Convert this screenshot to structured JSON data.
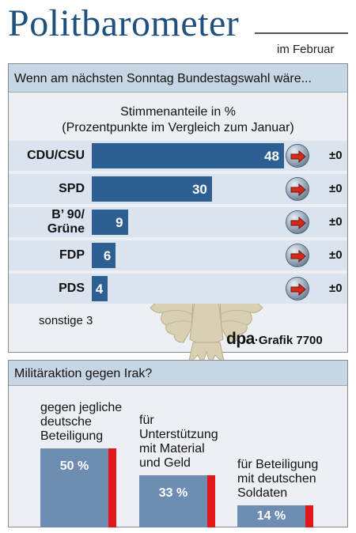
{
  "header": {
    "title": "Politbarometer",
    "month": "im Februar"
  },
  "chart_data": [
    {
      "type": "bar",
      "orientation": "horizontal",
      "title": "Wenn am nächsten Sonntag Bundestagswahl wäre...",
      "subtitle_line1": "Stimmenanteile in %",
      "subtitle_line2": "(Prozentpunkte im Vergleich zum Januar)",
      "categories": [
        "CDU/CSU",
        "SPD",
        "B’ 90/ Grüne",
        "FDP",
        "PDS"
      ],
      "category_lines": [
        [
          "CDU/CSU"
        ],
        [
          "SPD"
        ],
        [
          "B’ 90/",
          "Grüne"
        ],
        [
          "FDP"
        ],
        [
          "PDS"
        ]
      ],
      "values": [
        48,
        30,
        9,
        6,
        4
      ],
      "changes": [
        "±0",
        "±0",
        "±0",
        "±0",
        "±0"
      ],
      "change_icon": "arrow-right-icon",
      "other_label": "sonstige",
      "other_value": "3",
      "xlim": [
        0,
        48
      ],
      "bar_color": "#2d5f93",
      "band_color": "#dbe4ee"
    },
    {
      "type": "bar",
      "title": "Militäraktion gegen Irak?",
      "categories": [
        [
          "gegen jegliche",
          "deutsche",
          "Beteiligung"
        ],
        [
          "für",
          "Unterstützung",
          "mit Material",
          "und Geld"
        ],
        [
          "für Beteiligung",
          "mit deutschen",
          "Soldaten"
        ]
      ],
      "values": [
        50,
        33,
        14
      ],
      "value_labels": [
        "50 %",
        "33 %",
        "14 %"
      ],
      "ylim": [
        0,
        50
      ],
      "bar_color": "#6d8db3",
      "accent_color": "#e3161c"
    }
  ],
  "source": {
    "brand": "dpa",
    "text": "·Grafik 7700"
  },
  "emblem": "bundesadler-eagle-icon"
}
